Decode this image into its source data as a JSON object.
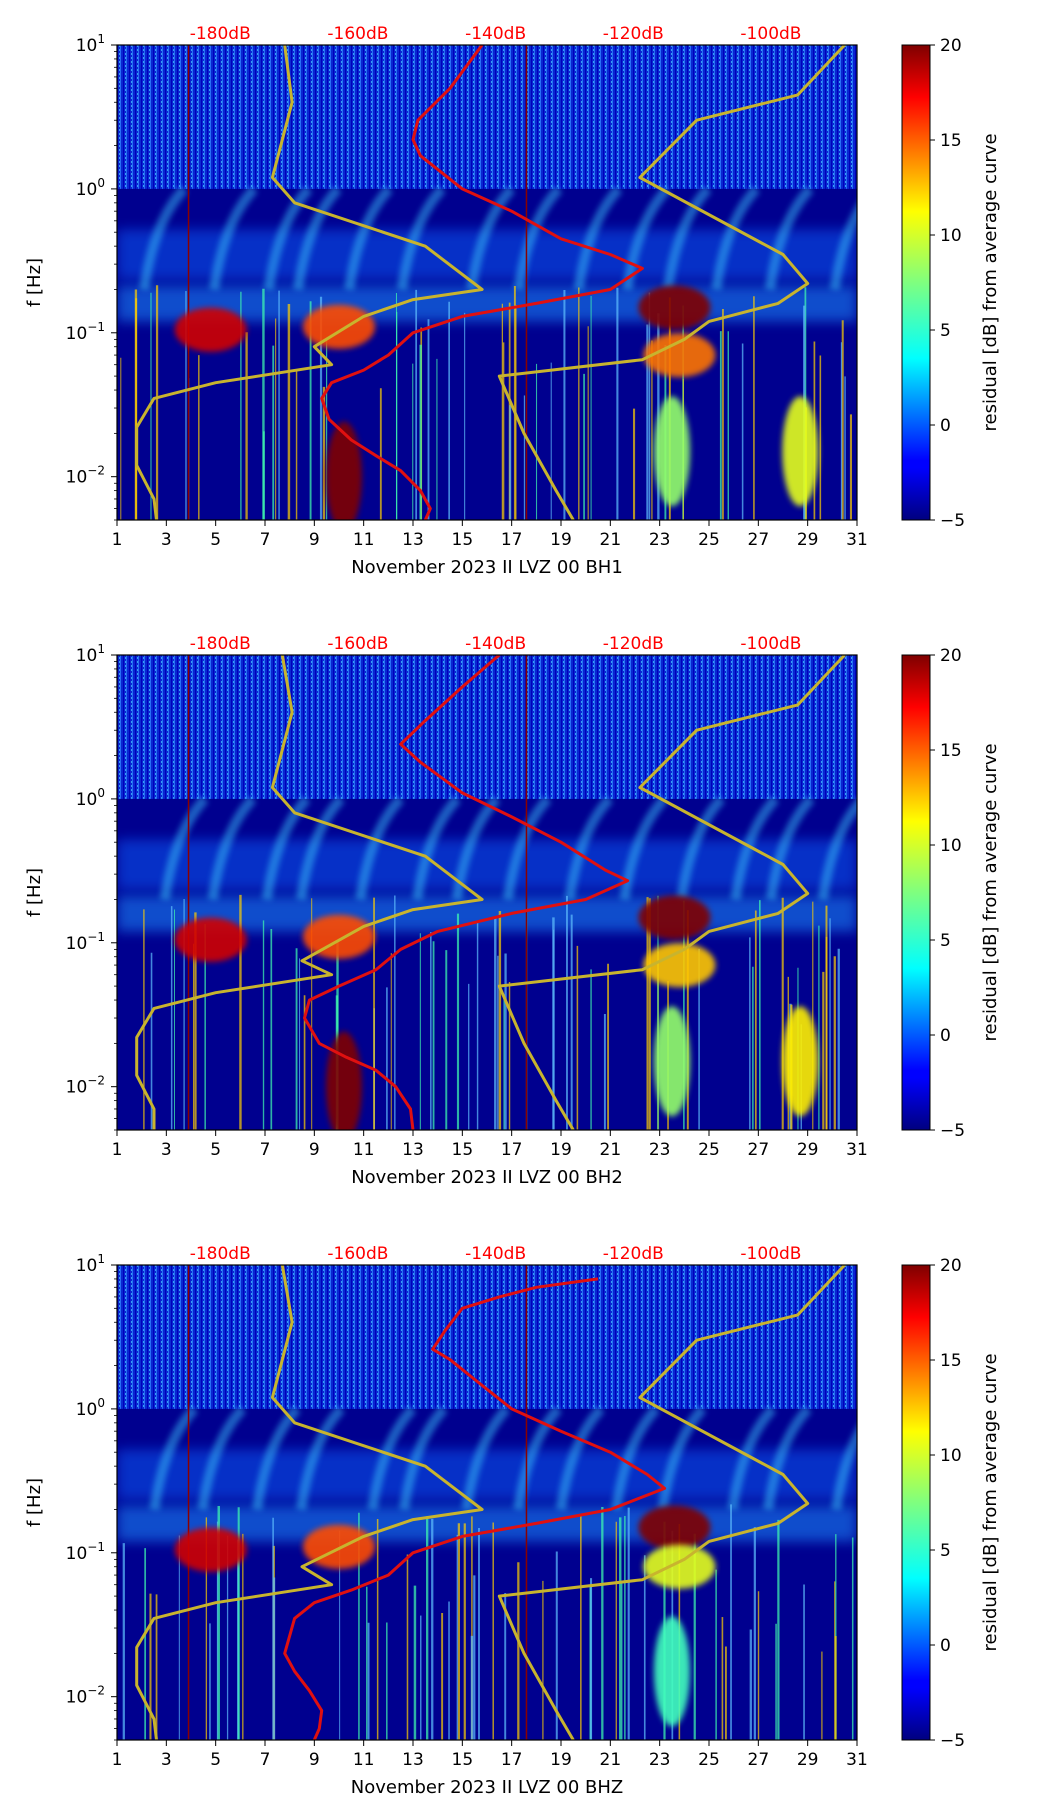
{
  "chart_data": [
    {
      "type": "heatmap",
      "title": "",
      "xlabel": "November 2023 II LVZ 00 BH1",
      "ylabel": "f [Hz]",
      "x_ticks": [
        "1",
        "3",
        "5",
        "7",
        "9",
        "11",
        "13",
        "15",
        "17",
        "19",
        "21",
        "23",
        "25",
        "27",
        "29",
        "31"
      ],
      "xlim": [
        1,
        31
      ],
      "y_scale": "log",
      "y_ticks": [
        {
          "base": "10",
          "exp": "1"
        },
        {
          "base": "10",
          "exp": "0"
        },
        {
          "base": "10",
          "exp": "−1"
        },
        {
          "base": "10",
          "exp": "−2"
        }
      ],
      "ylim": [
        0.005,
        10
      ],
      "top_ticks": [
        "-180dB",
        "-160dB",
        "-140dB",
        "-120dB",
        "-100dB"
      ],
      "top_ticks_color": "#ff0000",
      "colorbar": {
        "label": "residual [dB] from average curve",
        "ticks": [
          "20",
          "15",
          "10",
          "5",
          "0",
          "−5"
        ],
        "range": [
          -5,
          20
        ],
        "colormap": "jet"
      },
      "hotspots": [
        {
          "day": 23.6,
          "freq": 0.15,
          "value": 20
        },
        {
          "day": 23.8,
          "freq": 0.07,
          "value": 14
        },
        {
          "day": 28.7,
          "freq": 0.015,
          "value": 10
        },
        {
          "day": 23.5,
          "freq": 0.015,
          "value": 8
        },
        {
          "day": 4.8,
          "freq": 0.105,
          "value": 18
        },
        {
          "day": 10.0,
          "freq": 0.11,
          "value": 15
        },
        {
          "day": 10.2,
          "freq": 0.01,
          "value": 20
        }
      ],
      "lines": [
        {
          "color": "#e01010",
          "points": [
            [
              15.8,
              10
            ],
            [
              14.5,
              5
            ],
            [
              13.2,
              3
            ],
            [
              13.0,
              2.2
            ],
            [
              13.3,
              1.7
            ],
            [
              15,
              1
            ],
            [
              17,
              0.7
            ],
            [
              19,
              0.45
            ],
            [
              21,
              0.35
            ],
            [
              22.3,
              0.28
            ],
            [
              21,
              0.2
            ],
            [
              18,
              0.16
            ],
            [
              15,
              0.13
            ],
            [
              13,
              0.1
            ],
            [
              12,
              0.07
            ],
            [
              11,
              0.055
            ],
            [
              9.7,
              0.045
            ],
            [
              9.3,
              0.035
            ],
            [
              9.6,
              0.025
            ],
            [
              10.5,
              0.018
            ],
            [
              11.5,
              0.014
            ],
            [
              12.5,
              0.011
            ],
            [
              13.3,
              0.008
            ],
            [
              13.7,
              0.006
            ],
            [
              13.5,
              0.005
            ]
          ]
        },
        {
          "color": "#c8b42e",
          "points": [
            [
              7.8,
              10
            ],
            [
              8.1,
              4
            ],
            [
              7.3,
              1.2
            ],
            [
              8.2,
              0.8
            ],
            [
              13.5,
              0.4
            ],
            [
              15.8,
              0.2
            ],
            [
              13,
              0.17
            ],
            [
              11,
              0.13
            ],
            [
              9,
              0.08
            ],
            [
              9.7,
              0.06
            ],
            [
              5,
              0.045
            ],
            [
              2.5,
              0.035
            ],
            [
              1.8,
              0.022
            ],
            [
              1.8,
              0.012
            ],
            [
              2.5,
              0.007
            ],
            [
              2.6,
              0.005
            ]
          ]
        },
        {
          "color": "#c8b42e",
          "points": [
            [
              30.5,
              10
            ],
            [
              28.6,
              4.5
            ],
            [
              24.5,
              3
            ],
            [
              22.2,
              1.2
            ],
            [
              28,
              0.35
            ],
            [
              29,
              0.22
            ],
            [
              27.8,
              0.16
            ],
            [
              25,
              0.12
            ],
            [
              24,
              0.09
            ],
            [
              22.3,
              0.065
            ],
            [
              16.5,
              0.05
            ],
            [
              17.5,
              0.02
            ],
            [
              18.8,
              0.008
            ],
            [
              19.5,
              0.005
            ]
          ]
        }
      ]
    },
    {
      "type": "heatmap",
      "title": "",
      "xlabel": "November 2023 II LVZ 00 BH2",
      "ylabel": "f [Hz]",
      "x_ticks": [
        "1",
        "3",
        "5",
        "7",
        "9",
        "11",
        "13",
        "15",
        "17",
        "19",
        "21",
        "23",
        "25",
        "27",
        "29",
        "31"
      ],
      "xlim": [
        1,
        31
      ],
      "y_scale": "log",
      "y_ticks": [
        {
          "base": "10",
          "exp": "1"
        },
        {
          "base": "10",
          "exp": "0"
        },
        {
          "base": "10",
          "exp": "−1"
        },
        {
          "base": "10",
          "exp": "−2"
        }
      ],
      "ylim": [
        0.005,
        10
      ],
      "top_ticks": [
        "-180dB",
        "-160dB",
        "-140dB",
        "-120dB",
        "-100dB"
      ],
      "top_ticks_color": "#ff0000",
      "colorbar": {
        "label": "residual [dB] from average curve",
        "ticks": [
          "20",
          "15",
          "10",
          "5",
          "0",
          "−5"
        ],
        "range": [
          -5,
          20
        ],
        "colormap": "jet"
      },
      "hotspots": [
        {
          "day": 23.6,
          "freq": 0.15,
          "value": 20
        },
        {
          "day": 23.8,
          "freq": 0.07,
          "value": 12
        },
        {
          "day": 28.7,
          "freq": 0.015,
          "value": 11
        },
        {
          "day": 23.5,
          "freq": 0.015,
          "value": 8
        },
        {
          "day": 4.8,
          "freq": 0.105,
          "value": 18
        },
        {
          "day": 10.0,
          "freq": 0.11,
          "value": 15
        },
        {
          "day": 10.2,
          "freq": 0.01,
          "value": 20
        }
      ],
      "lines": [
        {
          "color": "#e01010",
          "points": [
            [
              16.5,
              10
            ],
            [
              15,
              6
            ],
            [
              13.5,
              3.5
            ],
            [
              12.5,
              2.4
            ],
            [
              13.3,
              1.8
            ],
            [
              15,
              1.1
            ],
            [
              17,
              0.75
            ],
            [
              19,
              0.5
            ],
            [
              20.8,
              0.32
            ],
            [
              21.7,
              0.27
            ],
            [
              20,
              0.2
            ],
            [
              17,
              0.16
            ],
            [
              14,
              0.12
            ],
            [
              12.5,
              0.09
            ],
            [
              11.5,
              0.065
            ],
            [
              10,
              0.05
            ],
            [
              8.8,
              0.04
            ],
            [
              8.6,
              0.03
            ],
            [
              9.2,
              0.02
            ],
            [
              10.3,
              0.016
            ],
            [
              11.5,
              0.013
            ],
            [
              12.3,
              0.01
            ],
            [
              12.9,
              0.007
            ],
            [
              13,
              0.005
            ]
          ]
        },
        {
          "color": "#c8b42e",
          "points": [
            [
              7.7,
              10
            ],
            [
              8.1,
              4
            ],
            [
              7.3,
              1.2
            ],
            [
              8.2,
              0.8
            ],
            [
              13.5,
              0.4
            ],
            [
              15.8,
              0.2
            ],
            [
              13,
              0.17
            ],
            [
              11,
              0.13
            ],
            [
              8.5,
              0.075
            ],
            [
              9.7,
              0.06
            ],
            [
              5,
              0.045
            ],
            [
              2.5,
              0.035
            ],
            [
              1.8,
              0.022
            ],
            [
              1.8,
              0.012
            ],
            [
              2.5,
              0.007
            ],
            [
              2.5,
              0.005
            ]
          ]
        },
        {
          "color": "#c8b42e",
          "points": [
            [
              30.5,
              10
            ],
            [
              28.6,
              4.5
            ],
            [
              24.5,
              3
            ],
            [
              22.2,
              1.2
            ],
            [
              28,
              0.35
            ],
            [
              29,
              0.22
            ],
            [
              27.8,
              0.16
            ],
            [
              25,
              0.12
            ],
            [
              24,
              0.09
            ],
            [
              22.3,
              0.065
            ],
            [
              16.5,
              0.05
            ],
            [
              17.5,
              0.02
            ],
            [
              18.8,
              0.008
            ],
            [
              19.5,
              0.005
            ]
          ]
        }
      ]
    },
    {
      "type": "heatmap",
      "title": "",
      "xlabel": "November 2023 II LVZ 00 BHZ",
      "ylabel": "f [Hz]",
      "x_ticks": [
        "1",
        "3",
        "5",
        "7",
        "9",
        "11",
        "13",
        "15",
        "17",
        "19",
        "21",
        "23",
        "25",
        "27",
        "29",
        "31"
      ],
      "xlim": [
        1,
        31
      ],
      "y_scale": "log",
      "y_ticks": [
        {
          "base": "10",
          "exp": "1"
        },
        {
          "base": "10",
          "exp": "0"
        },
        {
          "base": "10",
          "exp": "−1"
        },
        {
          "base": "10",
          "exp": "−2"
        }
      ],
      "ylim": [
        0.005,
        10
      ],
      "top_ticks": [
        "-180dB",
        "-160dB",
        "-140dB",
        "-120dB",
        "-100dB"
      ],
      "top_ticks_color": "#ff0000",
      "colorbar": {
        "label": "residual [dB] from average curve",
        "ticks": [
          "20",
          "15",
          "10",
          "5",
          "0",
          "−5"
        ],
        "range": [
          -5,
          20
        ],
        "colormap": "jet"
      },
      "hotspots": [
        {
          "day": 23.6,
          "freq": 0.15,
          "value": 20
        },
        {
          "day": 23.8,
          "freq": 0.08,
          "value": 10
        },
        {
          "day": 23.5,
          "freq": 0.015,
          "value": 6
        },
        {
          "day": 4.8,
          "freq": 0.105,
          "value": 18
        },
        {
          "day": 10.0,
          "freq": 0.11,
          "value": 15
        }
      ],
      "lines": [
        {
          "color": "#e01010",
          "points": [
            [
              20.5,
              8
            ],
            [
              18,
              7
            ],
            [
              16.5,
              6
            ],
            [
              15,
              5
            ],
            [
              14.3,
              3.5
            ],
            [
              13.8,
              2.6
            ],
            [
              14.5,
              2.2
            ],
            [
              15.5,
              1.6
            ],
            [
              17,
              1
            ],
            [
              19,
              0.7
            ],
            [
              21,
              0.5
            ],
            [
              22.5,
              0.35
            ],
            [
              23.2,
              0.28
            ],
            [
              21,
              0.2
            ],
            [
              18,
              0.16
            ],
            [
              15,
              0.13
            ],
            [
              13,
              0.1
            ],
            [
              12,
              0.07
            ],
            [
              10.5,
              0.055
            ],
            [
              9,
              0.045
            ],
            [
              8.2,
              0.035
            ],
            [
              7.8,
              0.02
            ],
            [
              8.2,
              0.015
            ],
            [
              8.8,
              0.011
            ],
            [
              9.3,
              0.008
            ],
            [
              9.2,
              0.006
            ],
            [
              9,
              0.005
            ]
          ]
        },
        {
          "color": "#c8b42e",
          "points": [
            [
              7.7,
              10
            ],
            [
              8.1,
              4
            ],
            [
              7.3,
              1.2
            ],
            [
              8.2,
              0.8
            ],
            [
              13.5,
              0.4
            ],
            [
              15.8,
              0.2
            ],
            [
              13,
              0.17
            ],
            [
              11,
              0.13
            ],
            [
              8.5,
              0.08
            ],
            [
              9.7,
              0.06
            ],
            [
              5,
              0.045
            ],
            [
              2.5,
              0.035
            ],
            [
              1.8,
              0.022
            ],
            [
              1.8,
              0.012
            ],
            [
              2.5,
              0.007
            ],
            [
              2.6,
              0.005
            ]
          ]
        },
        {
          "color": "#c8b42e",
          "points": [
            [
              30.5,
              10
            ],
            [
              28.6,
              4.5
            ],
            [
              24.5,
              3
            ],
            [
              22.2,
              1.2
            ],
            [
              28,
              0.35
            ],
            [
              29,
              0.22
            ],
            [
              27.8,
              0.16
            ],
            [
              25,
              0.12
            ],
            [
              24,
              0.09
            ],
            [
              22.3,
              0.065
            ],
            [
              16.5,
              0.05
            ],
            [
              17.5,
              0.02
            ],
            [
              18.8,
              0.008
            ],
            [
              19.5,
              0.005
            ]
          ]
        }
      ]
    }
  ]
}
